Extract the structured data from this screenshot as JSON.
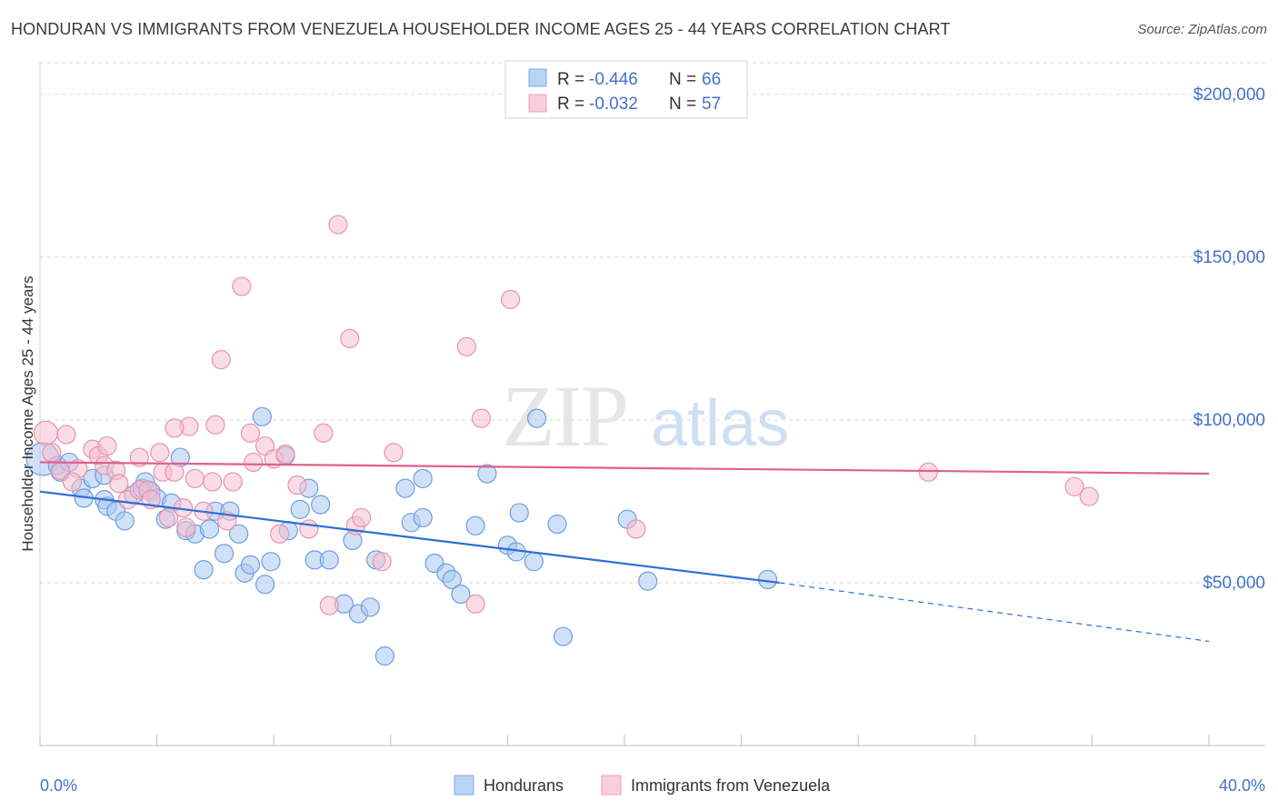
{
  "title": "HONDURAN VS IMMIGRANTS FROM VENEZUELA HOUSEHOLDER INCOME AGES 25 - 44 YEARS CORRELATION CHART",
  "source": "Source: ZipAtlas.com",
  "watermark": {
    "zip": "ZIP",
    "atlas": "atlas"
  },
  "colors": {
    "blue_fill": "#a9c8f0",
    "blue_stroke": "#6d9de0",
    "blue_line": "#2b6fd4",
    "pink_fill": "#f6bfd0",
    "pink_stroke": "#e892ae",
    "pink_line": "#e0608a",
    "axis_text": "#3f72c7",
    "grid": "#d9d9d9"
  },
  "legend_top": [
    {
      "r_label": "R = ",
      "r_value": "-0.446",
      "n_label": "N = ",
      "n_value": "66",
      "color": "blue"
    },
    {
      "r_label": "R = ",
      "r_value": "-0.032",
      "n_label": "N = ",
      "n_value": "57",
      "color": "pink"
    }
  ],
  "legend_bottom": [
    {
      "label": "Hondurans",
      "color": "blue"
    },
    {
      "label": "Immigrants from Venezuela",
      "color": "pink"
    }
  ],
  "chart_data": {
    "type": "scatter",
    "title": "HONDURAN VS IMMIGRANTS FROM VENEZUELA HOUSEHOLDER INCOME AGES 25 - 44 YEARS CORRELATION CHART",
    "xlabel": "",
    "ylabel": "Householder Income Ages 25 - 44 years",
    "xlim": [
      0,
      40
    ],
    "ylim": [
      0,
      210000
    ],
    "x_tick_labels": [
      "0.0%",
      "40.0%"
    ],
    "y_ticks": [
      50000,
      100000,
      150000,
      200000
    ],
    "y_tick_labels": [
      "$50,000",
      "$100,000",
      "$150,000",
      "$200,000"
    ],
    "grid": "horizontal dashed",
    "legend_position": "top-center",
    "series": [
      {
        "name": "Hondurans",
        "color": "#a9c8f0",
        "trend": {
          "x0": 0,
          "y0": 78000,
          "x1": 25.3,
          "y1": 50000,
          "dashed_to_x": 40,
          "dashed_to_y": 32000
        },
        "points": [
          [
            0.1,
            88000,
            18
          ],
          [
            0.6,
            86000,
            10
          ],
          [
            0.7,
            84000,
            10
          ],
          [
            1.4,
            79000,
            10
          ],
          [
            1.5,
            76000,
            10
          ],
          [
            1.8,
            82000,
            10
          ],
          [
            2.2,
            83000,
            10
          ],
          [
            2.2,
            75500,
            10
          ],
          [
            2.3,
            73500,
            10
          ],
          [
            2.6,
            72000,
            10
          ],
          [
            2.9,
            69000,
            10
          ],
          [
            3.2,
            77000,
            10
          ],
          [
            3.5,
            79000,
            10
          ],
          [
            3.6,
            81000,
            10
          ],
          [
            3.8,
            78000,
            10
          ],
          [
            4.0,
            76000,
            10
          ],
          [
            4.3,
            69500,
            10
          ],
          [
            4.5,
            74500,
            10
          ],
          [
            4.8,
            88500,
            10
          ],
          [
            5.0,
            66000,
            10
          ],
          [
            5.3,
            65000,
            10
          ],
          [
            5.6,
            54000,
            10
          ],
          [
            5.8,
            66500,
            10
          ],
          [
            6.0,
            72000,
            10
          ],
          [
            6.3,
            59000,
            10
          ],
          [
            6.5,
            72000,
            10
          ],
          [
            6.8,
            65000,
            10
          ],
          [
            7.0,
            53000,
            10
          ],
          [
            7.2,
            55500,
            10
          ],
          [
            7.6,
            101000,
            10
          ],
          [
            7.7,
            49500,
            10
          ],
          [
            7.9,
            56500,
            10
          ],
          [
            8.4,
            89000,
            10
          ],
          [
            8.5,
            66000,
            10
          ],
          [
            8.9,
            72500,
            10
          ],
          [
            9.2,
            79000,
            10
          ],
          [
            9.4,
            57000,
            10
          ],
          [
            9.6,
            74000,
            10
          ],
          [
            9.9,
            57000,
            10
          ],
          [
            10.4,
            43500,
            10
          ],
          [
            10.7,
            63000,
            10
          ],
          [
            10.9,
            40500,
            10
          ],
          [
            11.3,
            42500,
            10
          ],
          [
            11.5,
            57000,
            10
          ],
          [
            11.8,
            27500,
            10
          ],
          [
            12.5,
            79000,
            10
          ],
          [
            12.7,
            68500,
            10
          ],
          [
            13.1,
            82000,
            10
          ],
          [
            13.1,
            70000,
            10
          ],
          [
            13.5,
            56000,
            10
          ],
          [
            13.9,
            53000,
            10
          ],
          [
            14.1,
            51000,
            10
          ],
          [
            14.4,
            46500,
            10
          ],
          [
            14.9,
            67500,
            10
          ],
          [
            15.3,
            83500,
            10
          ],
          [
            16.0,
            61500,
            10
          ],
          [
            16.3,
            59500,
            10
          ],
          [
            16.4,
            71500,
            10
          ],
          [
            16.9,
            56500,
            10
          ],
          [
            17.0,
            100500,
            10
          ],
          [
            17.7,
            68000,
            10
          ],
          [
            17.9,
            33500,
            10
          ],
          [
            20.1,
            69500,
            10
          ],
          [
            20.8,
            50500,
            10
          ],
          [
            24.9,
            51000,
            10
          ],
          [
            1.0,
            87000,
            10
          ]
        ]
      },
      {
        "name": "Immigrants from Venezuela",
        "color": "#f6bfd0",
        "trend": {
          "x0": 0,
          "y0": 87000,
          "x1": 40,
          "y1": 83500
        },
        "points": [
          [
            0.2,
            96000,
            13
          ],
          [
            0.7,
            84500,
            10
          ],
          [
            0.9,
            95500,
            10
          ],
          [
            1.3,
            85000,
            10
          ],
          [
            1.8,
            91000,
            10
          ],
          [
            2.0,
            89000,
            10
          ],
          [
            2.2,
            86000,
            10
          ],
          [
            2.3,
            92000,
            10
          ],
          [
            2.6,
            84500,
            10
          ],
          [
            2.7,
            80500,
            10
          ],
          [
            3.0,
            75500,
            10
          ],
          [
            3.4,
            78500,
            10
          ],
          [
            3.4,
            88500,
            10
          ],
          [
            3.7,
            78500,
            10
          ],
          [
            3.8,
            75500,
            10
          ],
          [
            4.1,
            90000,
            10
          ],
          [
            4.2,
            84000,
            10
          ],
          [
            4.4,
            70000,
            10
          ],
          [
            4.6,
            84000,
            10
          ],
          [
            4.9,
            73000,
            10
          ],
          [
            5.0,
            67000,
            10
          ],
          [
            5.1,
            98000,
            10
          ],
          [
            5.3,
            82000,
            10
          ],
          [
            5.6,
            72000,
            10
          ],
          [
            5.9,
            81000,
            10
          ],
          [
            6.0,
            98500,
            10
          ],
          [
            6.2,
            118500,
            10
          ],
          [
            6.4,
            69000,
            10
          ],
          [
            6.6,
            81000,
            10
          ],
          [
            6.9,
            141000,
            10
          ],
          [
            7.2,
            96000,
            10
          ],
          [
            7.3,
            87000,
            10
          ],
          [
            7.7,
            92000,
            10
          ],
          [
            8.0,
            88000,
            10
          ],
          [
            8.2,
            65000,
            10
          ],
          [
            8.8,
            80000,
            10
          ],
          [
            9.2,
            66500,
            10
          ],
          [
            9.7,
            96000,
            10
          ],
          [
            9.9,
            43000,
            10
          ],
          [
            10.2,
            160000,
            10
          ],
          [
            10.6,
            125000,
            10
          ],
          [
            10.8,
            67500,
            10
          ],
          [
            11.0,
            70000,
            10
          ],
          [
            11.7,
            56500,
            10
          ],
          [
            14.6,
            122500,
            10
          ],
          [
            14.9,
            43500,
            10
          ],
          [
            15.1,
            100500,
            10
          ],
          [
            16.1,
            137000,
            10
          ],
          [
            20.4,
            66500,
            10
          ],
          [
            30.4,
            84000,
            10
          ],
          [
            35.4,
            79500,
            10
          ],
          [
            35.9,
            76500,
            10
          ],
          [
            0.4,
            90000,
            10
          ],
          [
            1.1,
            81000,
            10
          ],
          [
            12.1,
            90000,
            10
          ],
          [
            4.6,
            97500,
            10
          ],
          [
            8.4,
            89500,
            10
          ]
        ]
      }
    ]
  }
}
